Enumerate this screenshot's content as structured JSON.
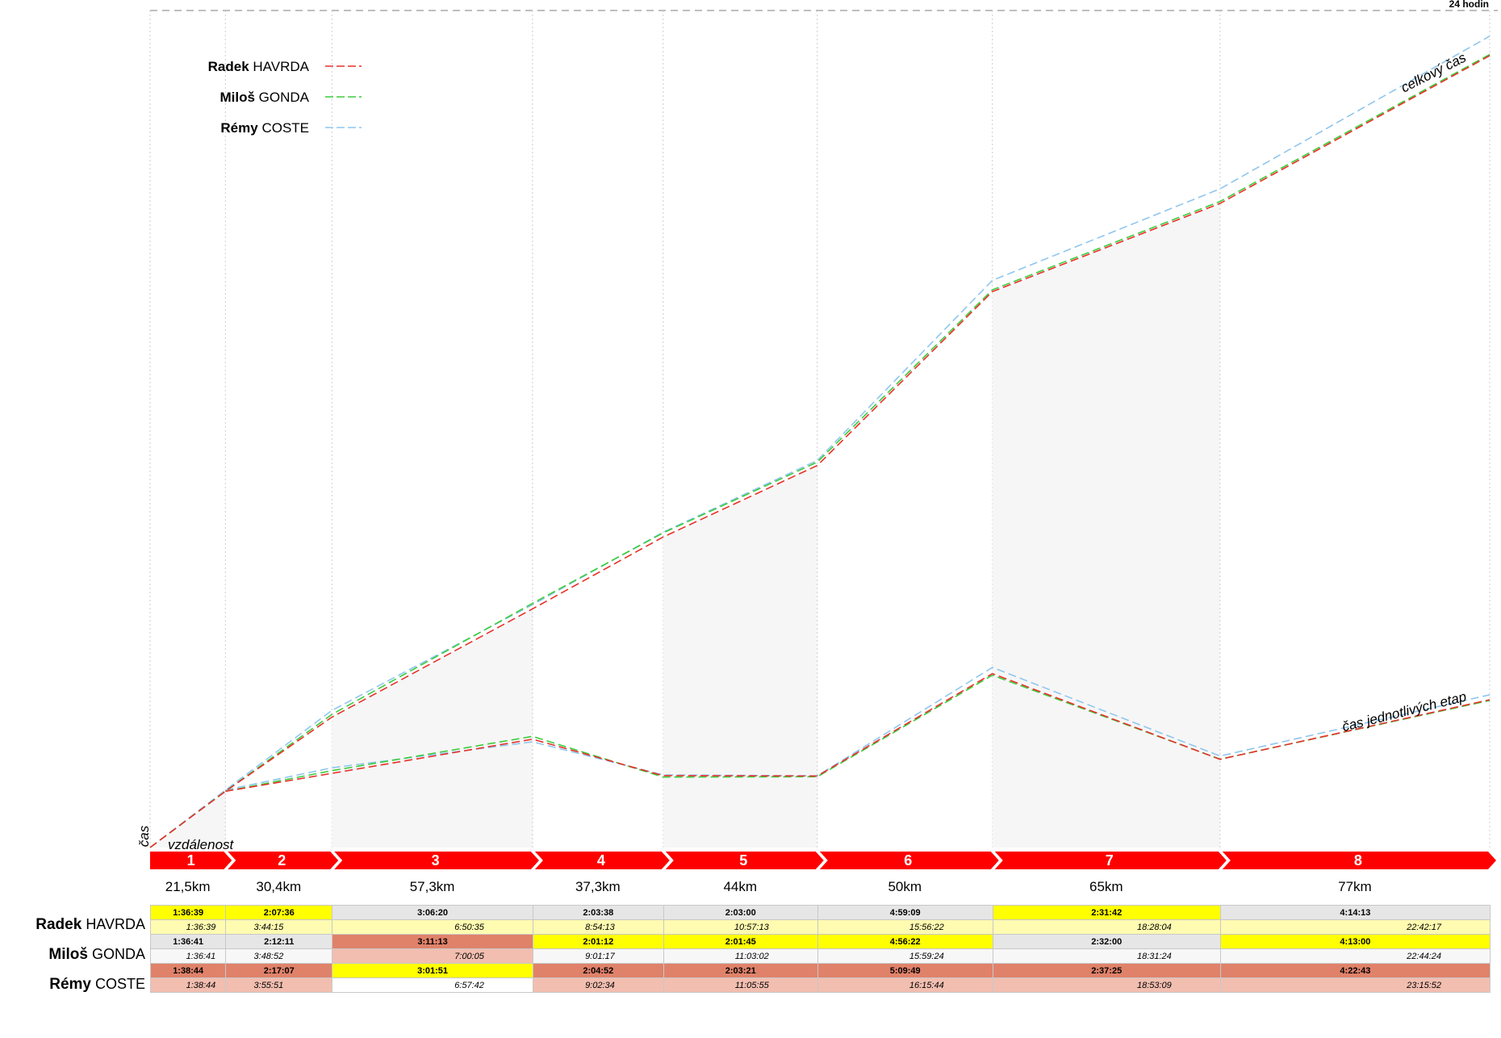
{
  "chart_data": {
    "type": "line",
    "top_label": "24 hodin",
    "y_axis_label": "čas",
    "x_axis_label": "vzdálenost",
    "cumulative_label": "celkový čas",
    "stage_label": "čas jednotlivých etap",
    "ylim_hours": [
      0,
      24
    ],
    "stages": [
      {
        "number": "1",
        "distance": "21,5km",
        "km": 21.5
      },
      {
        "number": "2",
        "distance": "30,4km",
        "km": 30.4
      },
      {
        "number": "3",
        "distance": "57,3km",
        "km": 57.3
      },
      {
        "number": "4",
        "distance": "37,3km",
        "km": 37.3
      },
      {
        "number": "5",
        "distance": "44km",
        "km": 44
      },
      {
        "number": "6",
        "distance": "50km",
        "km": 50
      },
      {
        "number": "7",
        "distance": "65km",
        "km": 65
      },
      {
        "number": "8",
        "distance": "77km",
        "km": 77
      }
    ],
    "series": [
      {
        "first": "Radek",
        "last": "HAVRDA",
        "color": "#e8302a",
        "stage_times": [
          "1:36:39",
          "2:07:36",
          "3:06:20",
          "2:03:38",
          "2:03:00",
          "4:59:09",
          "2:31:42",
          "4:14:13"
        ],
        "cumulative_times": [
          "1:36:39",
          "3:44:15",
          "6:50:35",
          "8:54:13",
          "10:57:13",
          "15:56:22",
          "18:28:04",
          "22:42:17"
        ],
        "stage_colors": [
          "#ffff00",
          "#ffff00",
          "#e6e6e6",
          "#e6e6e6",
          "#e6e6e6",
          "#e6e6e6",
          "#ffff00",
          "#e6e6e6"
        ],
        "cum_colors": [
          "#fffbb0",
          "#fffbb0",
          "#fffbb0",
          "#fffbb0",
          "#fffbb0",
          "#fffbb0",
          "#fffbb0",
          "#fffbb0"
        ]
      },
      {
        "first": "Miloš",
        "last": "GONDA",
        "color": "#3ccc3c",
        "stage_times": [
          "1:36:41",
          "2:12:11",
          "3:11:13",
          "2:01:12",
          "2:01:45",
          "4:56:22",
          "2:32:00",
          "4:13:00"
        ],
        "cumulative_times": [
          "1:36:41",
          "3:48:52",
          "7:00:05",
          "9:01:17",
          "11:03:02",
          "15:59:24",
          "18:31:24",
          "22:44:24"
        ],
        "stage_colors": [
          "#e6e6e6",
          "#e6e6e6",
          "#e0826a",
          "#ffff00",
          "#ffff00",
          "#ffff00",
          "#e6e6e6",
          "#ffff00"
        ],
        "cum_colors": [
          "#f7f7f7",
          "#f7f7f7",
          "#f2beb0",
          "#f7f7f7",
          "#f7f7f7",
          "#f7f7f7",
          "#f7f7f7",
          "#f7f7f7"
        ]
      },
      {
        "first": "Rémy",
        "last": "COSTE",
        "color": "#8fc6ee",
        "stage_times": [
          "1:38:44",
          "2:17:07",
          "3:01:51",
          "2:04:52",
          "2:03:21",
          "5:09:49",
          "2:37:25",
          "4:22:43"
        ],
        "cumulative_times": [
          "1:38:44",
          "3:55:51",
          "6:57:42",
          "9:02:34",
          "11:05:55",
          "16:15:44",
          "18:53:09",
          "23:15:52"
        ],
        "stage_colors": [
          "#e0826a",
          "#e0826a",
          "#ffff00",
          "#e0826a",
          "#e0826a",
          "#e0826a",
          "#e0826a",
          "#e0826a"
        ],
        "cum_colors": [
          "#f2beb0",
          "#f2beb0",
          "#ffffff",
          "#f2beb0",
          "#f2beb0",
          "#f2beb0",
          "#f2beb0",
          "#f2beb0"
        ]
      }
    ]
  }
}
